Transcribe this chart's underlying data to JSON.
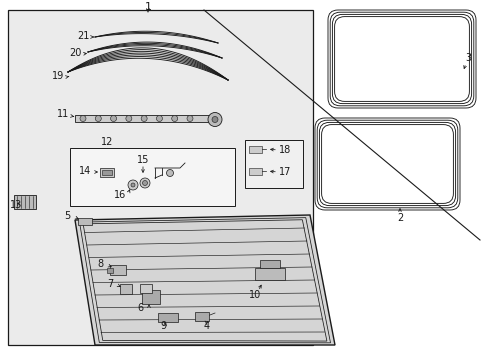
{
  "bg_color": "#ffffff",
  "fg_color": "#1a1a1a",
  "box_bg": "#e8e8e8",
  "fig_width": 4.89,
  "fig_height": 3.6,
  "dpi": 100
}
